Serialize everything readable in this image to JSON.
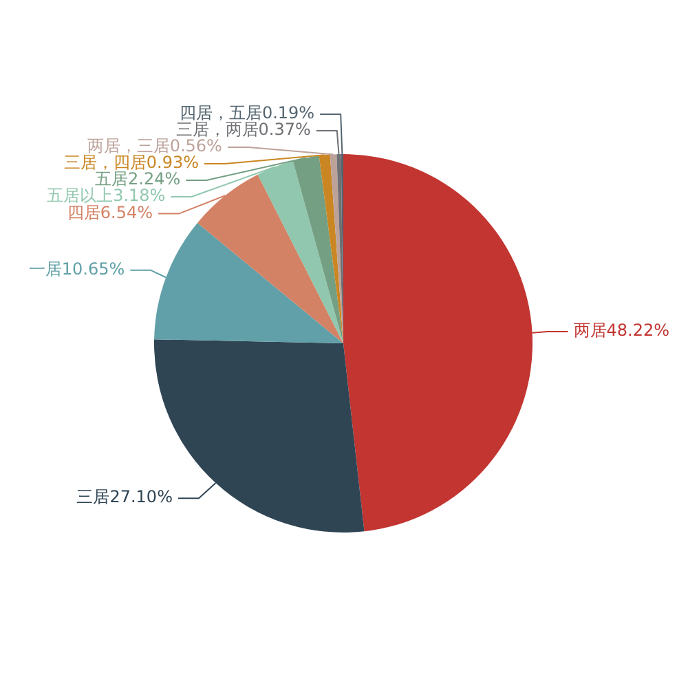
{
  "chart_data": {
    "type": "pie",
    "categories": [
      "两居",
      "三居",
      "一居",
      "四居",
      "五居以上",
      "五居",
      "三居，四居",
      "两居，三居",
      "三居，两居",
      "四居，五居"
    ],
    "values": [
      48.22,
      27.1,
      10.65,
      6.54,
      3.18,
      2.24,
      0.93,
      0.56,
      0.37,
      0.19
    ],
    "value_labels": [
      "48.22%",
      "27.10%",
      "10.65%",
      "6.54%",
      "3.18%",
      "2.24%",
      "0.93%",
      "0.56%",
      "0.37%",
      "0.19%"
    ],
    "colors": [
      "#c23531",
      "#2f4554",
      "#61a0a8",
      "#d48265",
      "#91c7ae",
      "#749f83",
      "#ca8622",
      "#bda29a",
      "#6e7074",
      "#546570"
    ]
  }
}
